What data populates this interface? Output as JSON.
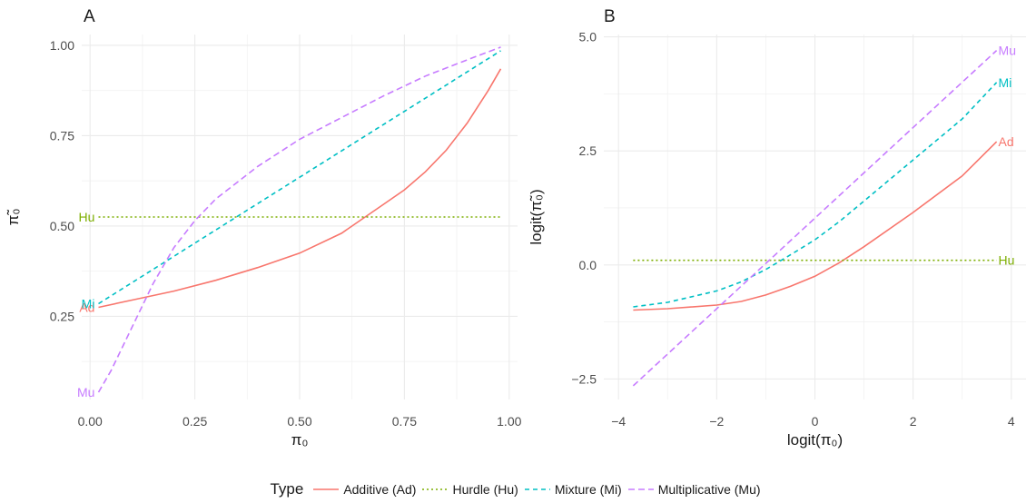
{
  "chart_data": [
    {
      "panel": "A",
      "type": "line",
      "xlabel": "π₀",
      "ylabel": "π̃₀",
      "xlim": [
        -0.02,
        1.02
      ],
      "ylim": [
        0.02,
        1.03
      ],
      "xticks": [
        {
          "v": 0,
          "label": "0.00"
        },
        {
          "v": 0.25,
          "label": "0.25"
        },
        {
          "v": 0.5,
          "label": "0.50"
        },
        {
          "v": 0.75,
          "label": "0.75"
        },
        {
          "v": 1,
          "label": "1.00"
        }
      ],
      "yticks": [
        {
          "v": 0.25,
          "label": "0.25"
        },
        {
          "v": 0.5,
          "label": "0.50"
        },
        {
          "v": 0.75,
          "label": "0.75"
        },
        {
          "v": 1,
          "label": "1.00"
        }
      ],
      "grid": true,
      "series": [
        {
          "key": "additive",
          "end_label": "Ad",
          "x": [
            0.02,
            0.1,
            0.2,
            0.3,
            0.4,
            0.5,
            0.6,
            0.7,
            0.75,
            0.8,
            0.85,
            0.9,
            0.95,
            0.98
          ],
          "y": [
            0.275,
            0.295,
            0.32,
            0.35,
            0.385,
            0.425,
            0.48,
            0.56,
            0.6,
            0.65,
            0.71,
            0.785,
            0.875,
            0.935
          ]
        },
        {
          "key": "hurdle",
          "end_label": "Hu",
          "x": [
            0.02,
            0.98
          ],
          "y": [
            0.525,
            0.525
          ]
        },
        {
          "key": "mixture",
          "end_label": "Mi",
          "x": [
            0.02,
            0.98
          ],
          "y": [
            0.285,
            0.985
          ]
        },
        {
          "key": "multiplicative",
          "end_label": "Mu",
          "x": [
            0.02,
            0.05,
            0.1,
            0.15,
            0.2,
            0.25,
            0.3,
            0.4,
            0.5,
            0.6,
            0.7,
            0.8,
            0.9,
            0.98
          ],
          "y": [
            0.04,
            0.1,
            0.22,
            0.34,
            0.44,
            0.515,
            0.575,
            0.665,
            0.74,
            0.8,
            0.86,
            0.915,
            0.96,
            0.995
          ]
        }
      ]
    },
    {
      "panel": "B",
      "type": "line",
      "xlabel": "logit(π₀)",
      "ylabel": "logit(π̃₀)",
      "xlim": [
        -4.3,
        4.3
      ],
      "ylim": [
        -2.95,
        5.05
      ],
      "xticks": [
        {
          "v": -4,
          "label": "−4"
        },
        {
          "v": -2,
          "label": "−2"
        },
        {
          "v": 0,
          "label": "0"
        },
        {
          "v": 2,
          "label": "2"
        },
        {
          "v": 4,
          "label": "4"
        }
      ],
      "yticks": [
        {
          "v": -2.5,
          "label": "−2.5"
        },
        {
          "v": 0,
          "label": "0.0"
        },
        {
          "v": 2.5,
          "label": "2.5"
        },
        {
          "v": 5,
          "label": "5.0"
        }
      ],
      "grid": true,
      "series": [
        {
          "key": "additive",
          "end_label": "Ad",
          "x": [
            -3.7,
            -3.0,
            -2.0,
            -1.5,
            -1.0,
            -0.5,
            0.0,
            0.5,
            1.0,
            2.0,
            3.0,
            3.7
          ],
          "y": [
            -0.99,
            -0.96,
            -0.88,
            -0.8,
            -0.66,
            -0.47,
            -0.25,
            0.05,
            0.4,
            1.15,
            1.95,
            2.7
          ]
        },
        {
          "key": "hurdle",
          "end_label": "Hu",
          "x": [
            -3.7,
            3.7
          ],
          "y": [
            0.1,
            0.1
          ]
        },
        {
          "key": "mixture",
          "end_label": "Mi",
          "x": [
            -3.7,
            -3.0,
            -2.0,
            -1.5,
            -1.0,
            -0.5,
            0.0,
            0.5,
            1.0,
            2.0,
            3.0,
            3.7
          ],
          "y": [
            -0.92,
            -0.82,
            -0.57,
            -0.37,
            -0.1,
            0.22,
            0.55,
            0.95,
            1.4,
            2.3,
            3.2,
            4.0
          ]
        },
        {
          "key": "multiplicative",
          "end_label": "Mu",
          "x": [
            -3.7,
            3.7
          ],
          "y": [
            -2.65,
            4.7
          ]
        }
      ]
    }
  ],
  "panels": [
    "A",
    "B"
  ],
  "legend": {
    "title": "Type",
    "placement": "bottom",
    "items": [
      {
        "key": "additive",
        "label": "Additive (Ad)",
        "color": "#f8766d",
        "dash": "solid"
      },
      {
        "key": "hurdle",
        "label": "Hurdle (Hu)",
        "color": "#7cae00",
        "dash": "dotted"
      },
      {
        "key": "mixture",
        "label": "Mixture (Mi)",
        "color": "#00bfc4",
        "dash": "dashed"
      },
      {
        "key": "multiplicative",
        "label": "Multiplicative (Mu)",
        "color": "#c77cff",
        "dash": "longdash"
      }
    ]
  }
}
